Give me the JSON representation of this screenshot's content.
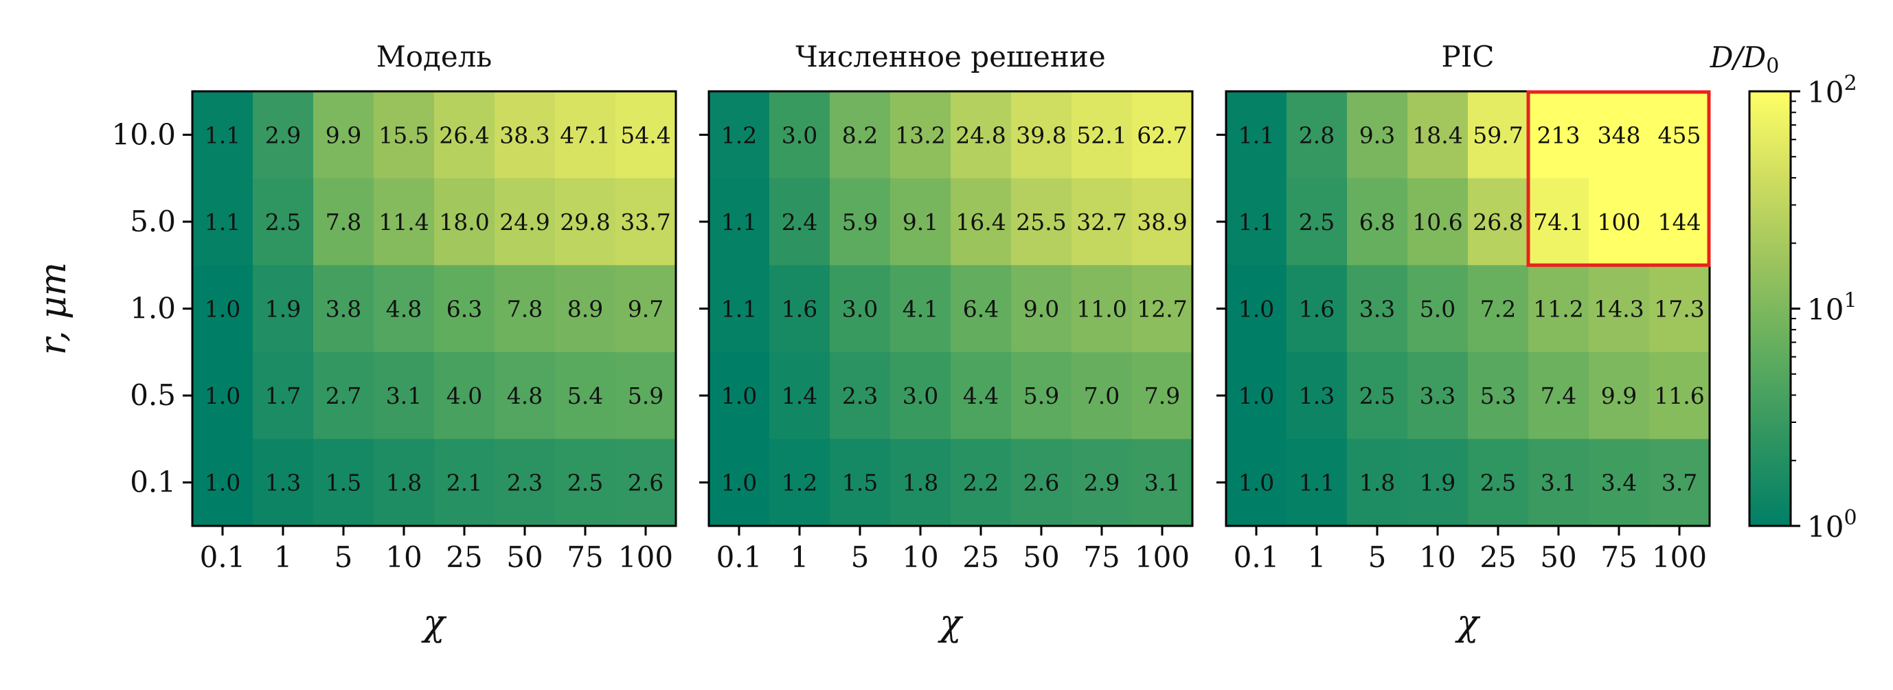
{
  "chart_data": [
    {
      "type": "heatmap",
      "title": "Модель",
      "xlabel": "χ",
      "ylabel": "r, μm",
      "x": [
        "0.1",
        "1",
        "5",
        "10",
        "25",
        "50",
        "75",
        "100"
      ],
      "y": [
        "10.0",
        "5.0",
        "1.0",
        "0.5",
        "0.1"
      ],
      "values": [
        [
          1.1,
          2.9,
          9.9,
          15.5,
          26.4,
          38.3,
          47.1,
          54.4
        ],
        [
          1.1,
          2.5,
          7.8,
          11.4,
          18.0,
          24.9,
          29.8,
          33.7
        ],
        [
          1.0,
          1.9,
          3.8,
          4.8,
          6.3,
          7.8,
          8.9,
          9.7
        ],
        [
          1.0,
          1.7,
          2.7,
          3.1,
          4.0,
          4.8,
          5.4,
          5.9
        ],
        [
          1.0,
          1.3,
          1.5,
          1.8,
          2.1,
          2.3,
          2.5,
          2.6
        ]
      ],
      "labels": [
        [
          "1.1",
          "2.9",
          "9.9",
          "15.5",
          "26.4",
          "38.3",
          "47.1",
          "54.4"
        ],
        [
          "1.1",
          "2.5",
          "7.8",
          "11.4",
          "18.0",
          "24.9",
          "29.8",
          "33.7"
        ],
        [
          "1.0",
          "1.9",
          "3.8",
          "4.8",
          "6.3",
          "7.8",
          "8.9",
          "9.7"
        ],
        [
          "1.0",
          "1.7",
          "2.7",
          "3.1",
          "4.0",
          "4.8",
          "5.4",
          "5.9"
        ],
        [
          "1.0",
          "1.3",
          "1.5",
          "1.8",
          "2.1",
          "2.3",
          "2.5",
          "2.6"
        ]
      ]
    },
    {
      "type": "heatmap",
      "title": "Численное решение",
      "xlabel": "χ",
      "ylabel": "",
      "x": [
        "0.1",
        "1",
        "5",
        "10",
        "25",
        "50",
        "75",
        "100"
      ],
      "y": [
        "10.0",
        "5.0",
        "1.0",
        "0.5",
        "0.1"
      ],
      "values": [
        [
          1.2,
          3.0,
          8.2,
          13.2,
          24.8,
          39.8,
          52.1,
          62.7
        ],
        [
          1.1,
          2.4,
          5.9,
          9.1,
          16.4,
          25.5,
          32.7,
          38.9
        ],
        [
          1.1,
          1.6,
          3.0,
          4.1,
          6.4,
          9.0,
          11.0,
          12.7
        ],
        [
          1.0,
          1.4,
          2.3,
          3.0,
          4.4,
          5.9,
          7.0,
          7.9
        ],
        [
          1.0,
          1.2,
          1.5,
          1.8,
          2.2,
          2.6,
          2.9,
          3.1
        ]
      ],
      "labels": [
        [
          "1.2",
          "3.0",
          "8.2",
          "13.2",
          "24.8",
          "39.8",
          "52.1",
          "62.7"
        ],
        [
          "1.1",
          "2.4",
          "5.9",
          "9.1",
          "16.4",
          "25.5",
          "32.7",
          "38.9"
        ],
        [
          "1.1",
          "1.6",
          "3.0",
          "4.1",
          "6.4",
          "9.0",
          "11.0",
          "12.7"
        ],
        [
          "1.0",
          "1.4",
          "2.3",
          "3.0",
          "4.4",
          "5.9",
          "7.0",
          "7.9"
        ],
        [
          "1.0",
          "1.2",
          "1.5",
          "1.8",
          "2.2",
          "2.6",
          "2.9",
          "3.1"
        ]
      ]
    },
    {
      "type": "heatmap",
      "title": "PIC",
      "xlabel": "χ",
      "ylabel": "",
      "x": [
        "0.1",
        "1",
        "5",
        "10",
        "25",
        "50",
        "75",
        "100"
      ],
      "y": [
        "10.0",
        "5.0",
        "1.0",
        "0.5",
        "0.1"
      ],
      "values": [
        [
          1.1,
          2.8,
          9.3,
          18.4,
          59.7,
          213,
          348,
          455
        ],
        [
          1.1,
          2.5,
          6.8,
          10.6,
          26.8,
          74.1,
          100,
          144
        ],
        [
          1.0,
          1.6,
          3.3,
          5.0,
          7.2,
          11.2,
          14.3,
          17.3
        ],
        [
          1.0,
          1.3,
          2.5,
          3.3,
          5.3,
          7.4,
          9.9,
          11.6
        ],
        [
          1.0,
          1.1,
          1.8,
          1.9,
          2.5,
          3.1,
          3.4,
          3.7
        ]
      ],
      "labels": [
        [
          "1.1",
          "2.8",
          "9.3",
          "18.4",
          "59.7",
          "213",
          "348",
          "455"
        ],
        [
          "1.1",
          "2.5",
          "6.8",
          "10.6",
          "26.8",
          "74.1",
          "100",
          "144"
        ],
        [
          "1.0",
          "1.6",
          "3.3",
          "5.0",
          "7.2",
          "11.2",
          "14.3",
          "17.3"
        ],
        [
          "1.0",
          "1.3",
          "2.5",
          "3.3",
          "5.3",
          "7.4",
          "9.9",
          "11.6"
        ],
        [
          "1.0",
          "1.1",
          "1.8",
          "1.9",
          "2.5",
          "3.1",
          "3.4",
          "3.7"
        ]
      ],
      "highlight": {
        "rows": [
          0,
          1
        ],
        "cols": [
          5,
          6,
          7
        ],
        "color": "#e8231e"
      }
    }
  ],
  "colorbar": {
    "label": "D/D",
    "label_sub": "0",
    "scale": "log",
    "range": [
      1,
      100
    ],
    "ticks": [
      {
        "value": 1,
        "base": "10",
        "exp": "0"
      },
      {
        "value": 10,
        "base": "10",
        "exp": "1"
      },
      {
        "value": 100,
        "base": "10",
        "exp": "2"
      }
    ],
    "colormap": [
      "#007f66",
      "#2f9561",
      "#61ad5e",
      "#9ac35d",
      "#cfdd60",
      "#ffff66"
    ]
  }
}
